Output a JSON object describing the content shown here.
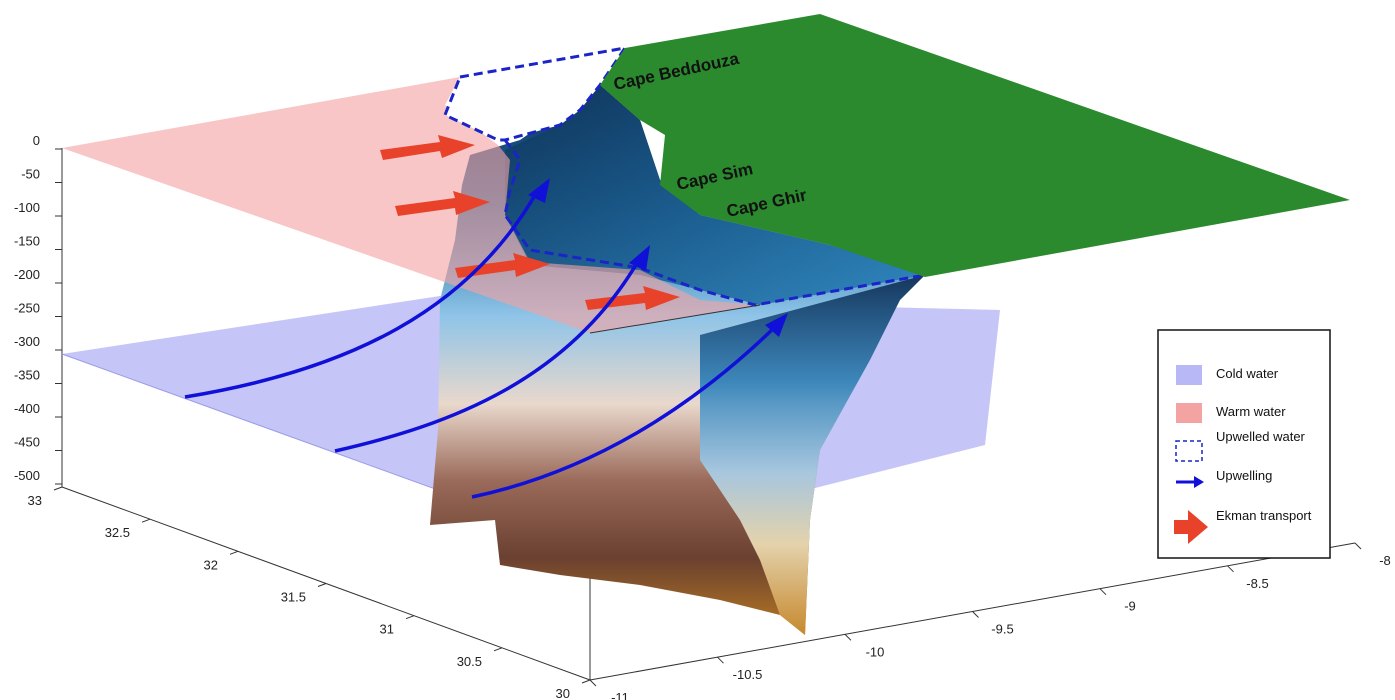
{
  "figure": {
    "depth_ticks": [
      "0",
      "-50",
      "-100",
      "-150",
      "-200",
      "-250",
      "-300",
      "-350",
      "-400",
      "-450",
      "-500"
    ],
    "latitude_ticks": [
      "33",
      "32.5",
      "32",
      "31.5",
      "31",
      "30.5",
      "30"
    ],
    "longitude_ticks": [
      "-11",
      "-10.5",
      "-10",
      "-9.5",
      "-9",
      "-8.5",
      "-8"
    ],
    "capes": [
      "Cape Beddouza",
      "Cape Sim",
      "Cape Ghir"
    ],
    "legend": [
      {
        "label": "Cold water",
        "kind": "cold"
      },
      {
        "label": "Warm water",
        "kind": "warm"
      },
      {
        "label": "Upwelled water",
        "kind": "upwelled"
      },
      {
        "label": "Upwelling",
        "kind": "upwelling"
      },
      {
        "label": "Ekman transport",
        "kind": "ekman"
      }
    ],
    "colors": {
      "land": "#2b8a2e",
      "warm_water": "#f4a3a3",
      "cold_water": "#b8b8f6",
      "upwelling_arrow": "#1010d8",
      "ekman_arrow": "#e8432a",
      "upwelled_outline": "#1a24c8"
    }
  }
}
